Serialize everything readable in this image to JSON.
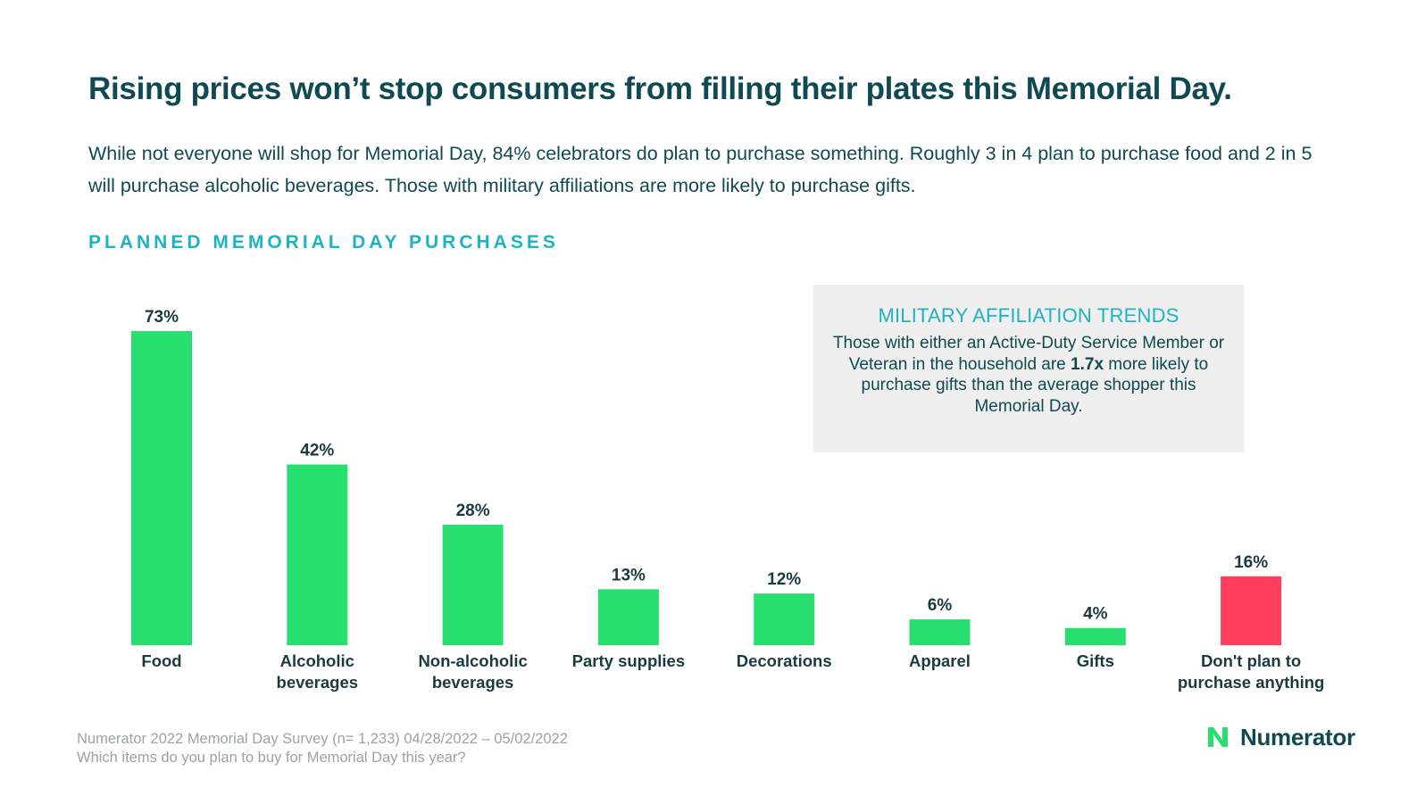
{
  "title": "Rising prices won’t stop consumers from filling their plates this Memorial Day.",
  "subtitle": "While not everyone will shop for Memorial Day, 84% celebrators do plan to purchase something. Roughly 3 in 4 plan to purchase food and 2 in 5 will purchase alcoholic beverages. Those with military affiliations are more likely to purchase gifts.",
  "chart_heading": "PLANNED MEMORIAL DAY PURCHASES",
  "callout": {
    "title": "MILITARY AFFILIATION TRENDS",
    "body_before": "Those with either an Active-Duty Service Member or Veteran in the household are ",
    "body_bold": "1.7x",
    "body_after": " more likely to purchase gifts than the average shopper this Memorial Day."
  },
  "chart_data": {
    "type": "bar",
    "title": "PLANNED MEMORIAL DAY PURCHASES",
    "categories": [
      [
        "Food"
      ],
      [
        "Alcoholic",
        "beverages"
      ],
      [
        "Non-alcoholic",
        "beverages"
      ],
      [
        "Party supplies"
      ],
      [
        "Decorations"
      ],
      [
        "Apparel"
      ],
      [
        "Gifts"
      ],
      [
        "Don't plan to",
        "purchase anything"
      ]
    ],
    "values": [
      73,
      42,
      28,
      13,
      12,
      6,
      4,
      16
    ],
    "value_labels": [
      "73%",
      "42%",
      "28%",
      "13%",
      "12%",
      "6%",
      "4%",
      "16%"
    ],
    "colors": [
      "#27df6f",
      "#27df6f",
      "#27df6f",
      "#27df6f",
      "#27df6f",
      "#27df6f",
      "#27df6f",
      "#ff3d5c"
    ],
    "unit": "%",
    "ylim": [
      0,
      73
    ],
    "grid": false
  },
  "footnote": {
    "line1": "Numerator 2022 Memorial Day Survey (n= 1,233) 04/28/2022 – 05/02/2022",
    "line2": "Which items do you plan to buy for Memorial Day this year?"
  },
  "logo": {
    "text": "Numerator",
    "color": "#27df6f"
  }
}
